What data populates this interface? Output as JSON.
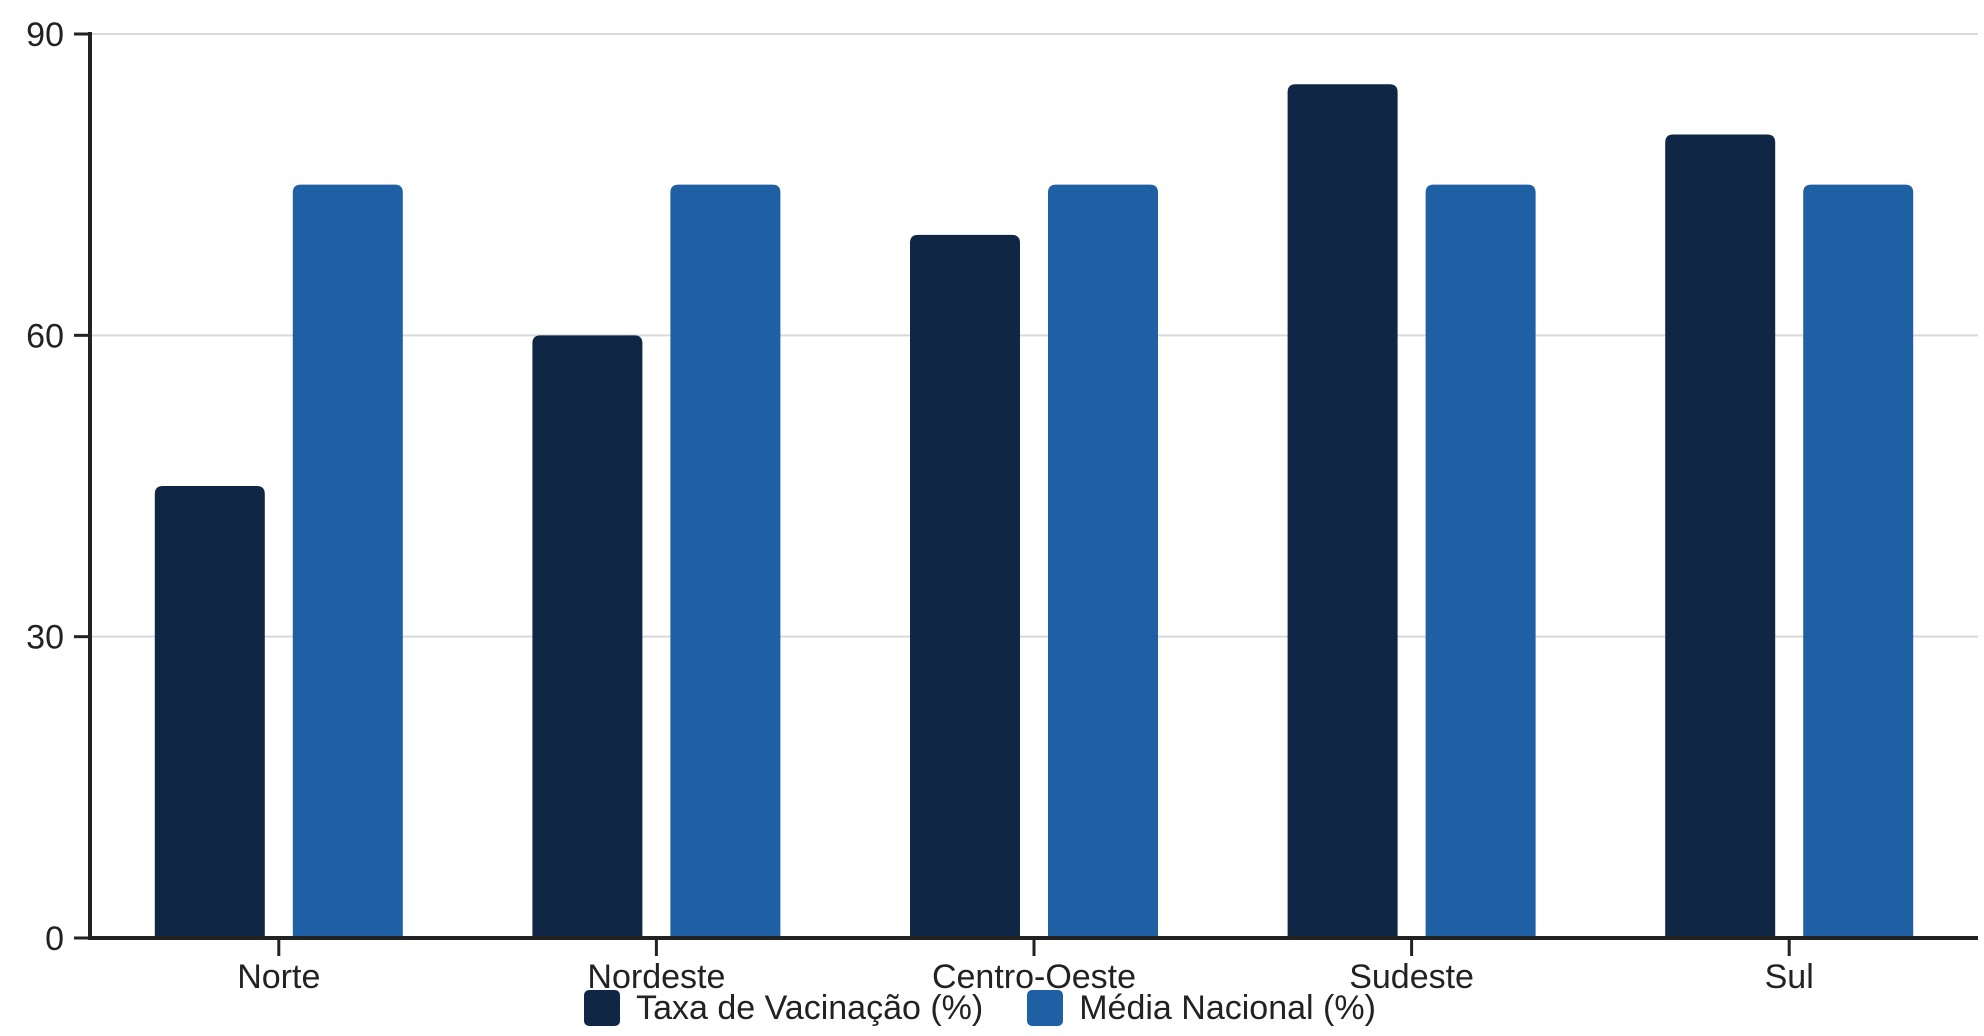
{
  "chart_data": {
    "type": "bar",
    "categories": [
      "Norte",
      "Nordeste",
      "Centro-Oeste",
      "Sudeste",
      "Sul"
    ],
    "series": [
      {
        "name": "Taxa de Vacinação (%)",
        "values": [
          45,
          60,
          70,
          85,
          80
        ],
        "color": "#0f2744"
      },
      {
        "name": "Média Nacional (%)",
        "values": [
          75,
          75,
          75,
          75,
          75
        ],
        "color": "#1f5fa3"
      }
    ],
    "title": "",
    "xlabel": "",
    "ylabel": "",
    "ylim": [
      0,
      90
    ],
    "yticks": [
      0,
      30,
      60,
      90
    ],
    "grid": true,
    "legend_position": "bottom-center"
  }
}
